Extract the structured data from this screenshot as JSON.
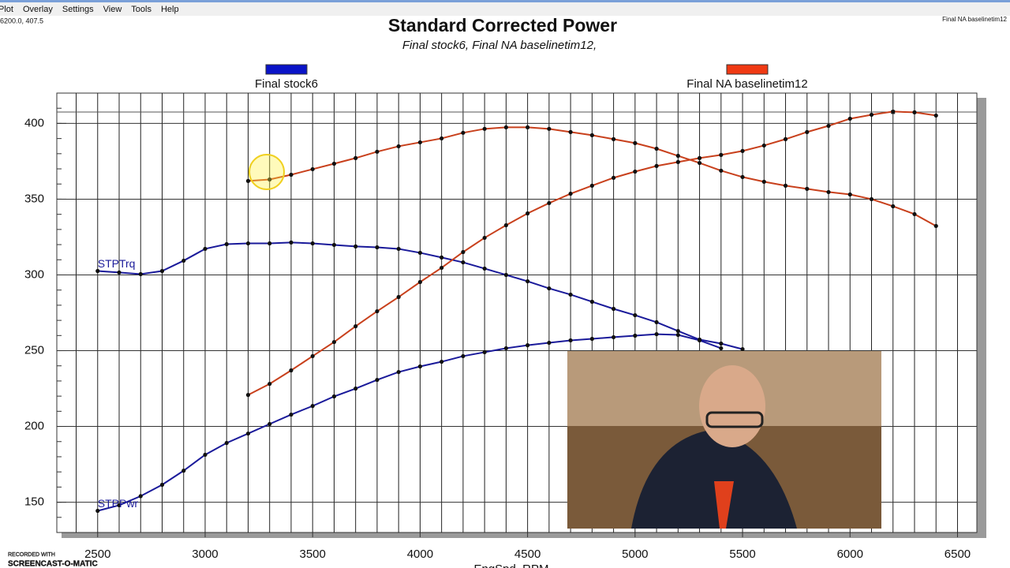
{
  "menu": [
    "Plot",
    "Overlay",
    "Settings",
    "View",
    "Tools",
    "Help"
  ],
  "corner_label": "Final NA baselinetim12",
  "watermark": [
    "RECORDED WITH",
    "SCREENCAST-O-MATIC"
  ],
  "chart_data": {
    "type": "line",
    "title": "Standard Corrected Power",
    "subtitle": "Final stock6, Final NA baselinetim12,",
    "x_label": "EngSpd, RPM",
    "cursor": {
      "x": 6200,
      "y": 407.5,
      "label": "6200.0, 407.5"
    },
    "xlim": [
      2310,
      6590
    ],
    "ylim": [
      130,
      420
    ],
    "xticks": [
      2500,
      3000,
      3500,
      4000,
      4500,
      5000,
      5500,
      6000,
      6500
    ],
    "yticks": [
      150,
      200,
      250,
      300,
      350,
      400
    ],
    "x_grid_step": 100,
    "y_minor_step": 10,
    "grid": true,
    "x": [
      2500,
      2600,
      2700,
      2800,
      2900,
      3000,
      3100,
      3200,
      3300,
      3400,
      3500,
      3600,
      3700,
      3800,
      3900,
      4000,
      4100,
      4200,
      4300,
      4400,
      4500,
      4600,
      4700,
      4800,
      4900,
      5000,
      5100,
      5200,
      5300,
      5400,
      5500,
      5600,
      5700,
      5800,
      5900,
      6000,
      6100,
      6200,
      6300,
      6400
    ],
    "series": [
      {
        "name": "Final stock6",
        "color": "#0a14c8",
        "line_color": "#1a1a9a",
        "curves": [
          {
            "label": "STPTrq",
            "values": [
              302.6,
              301.6,
              300.5,
              302.6,
              309.4,
              317.2,
              320.3,
              320.8,
              320.8,
              321.4,
              320.8,
              319.8,
              318.8,
              318.2,
              317.2,
              314.6,
              311.5,
              308.3,
              304.2,
              300,
              295.8,
              291.1,
              287,
              282.3,
              277.6,
              273.4,
              268.8,
              263,
              257.3,
              254.7,
              251,
              null,
              null,
              null,
              null,
              null,
              null,
              null,
              null,
              null
            ]
          },
          {
            "label": "STPPwr",
            "values": [
              144.3,
              148,
              154,
              161.5,
              170.8,
              181.3,
              189.1,
              195.3,
              201.6,
              207.8,
              213.5,
              219.8,
              225,
              230.7,
              235.9,
              239.6,
              242.7,
              246.4,
              249,
              251.6,
              253.6,
              255.2,
              256.8,
              257.8,
              258.9,
              259.9,
              260.9,
              260.4,
              256.8,
              251.6,
              null,
              null,
              null,
              null,
              null,
              null,
              null,
              null,
              null,
              null
            ]
          }
        ]
      },
      {
        "name": "Final NA baselinetim12",
        "color": "#f03a14",
        "line_color": "#c8401c",
        "curves": [
          {
            "values": [
              null,
              null,
              null,
              null,
              null,
              null,
              null,
              362,
              363,
              366.1,
              369.8,
              373.4,
              377.1,
              381.3,
              384.9,
              387.5,
              390.1,
              393.8,
              396.4,
              397.4,
              397.4,
              396.4,
              394.3,
              392.2,
              389.6,
              387,
              383.3,
              378.6,
              373.9,
              368.8,
              364.6,
              361.5,
              358.9,
              356.8,
              354.7,
              353.1,
              350,
              345.3,
              340.1,
              332.3
            ]
          },
          {
            "values": [
              null,
              null,
              null,
              null,
              null,
              null,
              null,
              220.8,
              228.1,
              237,
              246.4,
              255.7,
              266.1,
              276,
              285.4,
              295.3,
              304.7,
              315.1,
              324.5,
              332.8,
              340.6,
              347.4,
              353.6,
              358.9,
              364.1,
              368.2,
              371.9,
              374.5,
              377.1,
              379.2,
              381.8,
              385.4,
              389.6,
              394.3,
              398.4,
              403.1,
              405.7,
              407.8,
              407.3,
              405.2
            ]
          }
        ]
      }
    ]
  }
}
